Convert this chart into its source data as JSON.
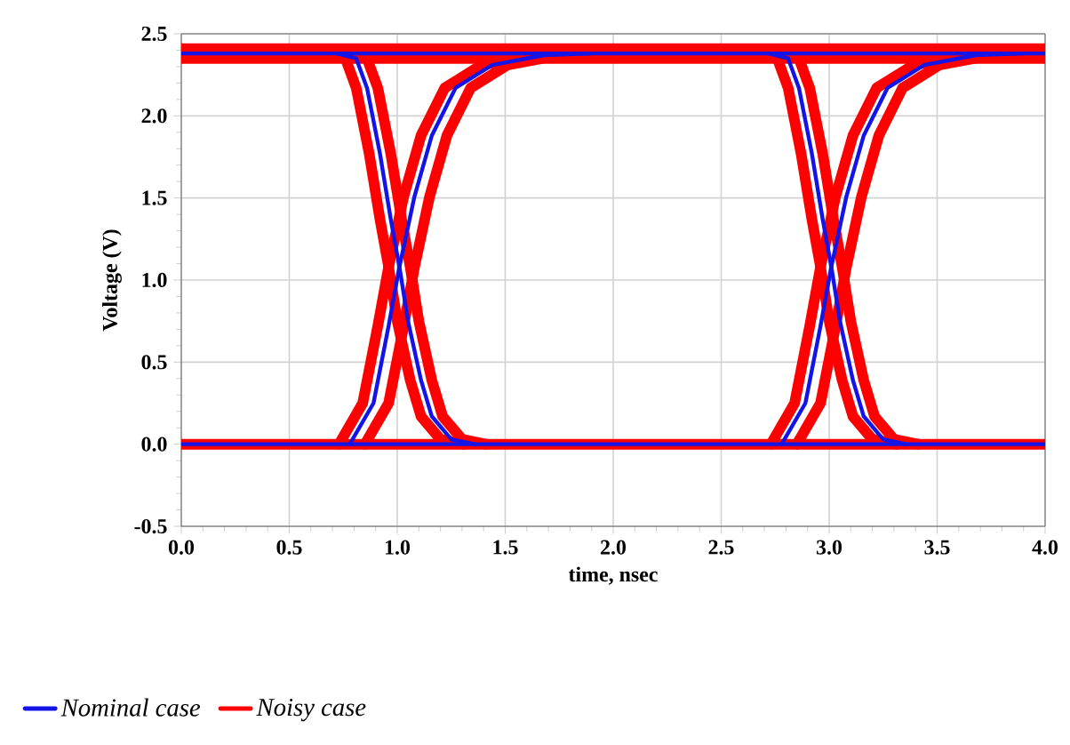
{
  "chart_data": {
    "type": "line",
    "xlabel": "time, nsec",
    "ylabel": "Voltage (V)",
    "xlim": [
      0,
      4
    ],
    "ylim": [
      -0.5,
      2.5
    ],
    "xticks": [
      {
        "value": 0,
        "label": "0.0"
      },
      {
        "value": 0.5,
        "label": "0.5"
      },
      {
        "value": 1,
        "label": "1.0"
      },
      {
        "value": 1.5,
        "label": "1.5"
      },
      {
        "value": 2,
        "label": "2.0"
      },
      {
        "value": 2.5,
        "label": "2.5"
      },
      {
        "value": 3,
        "label": "3.0"
      },
      {
        "value": 3.5,
        "label": "3.5"
      },
      {
        "value": 4,
        "label": "4.0"
      }
    ],
    "yticks": [
      {
        "value": -0.5,
        "label": "-0.5"
      },
      {
        "value": 0,
        "label": "0.0"
      },
      {
        "value": 0.5,
        "label": "0.5"
      },
      {
        "value": 1,
        "label": "1.0"
      },
      {
        "value": 1.5,
        "label": "1.5"
      },
      {
        "value": 2,
        "label": "2.0"
      },
      {
        "value": 2.5,
        "label": "2.5"
      }
    ],
    "grid": true,
    "legend": "bottom",
    "marker": "none",
    "line_style": "solid",
    "series": [
      {
        "name": "Nominal case",
        "color": "#1414e6",
        "x": [
          0,
          4
        ],
        "values": [
          2.38,
          2.38
        ]
      },
      {
        "color": "#1414e6",
        "x": [
          0,
          4
        ],
        "values": [
          0,
          0
        ]
      },
      {
        "color": "#1414e6",
        "x": [
          0.72,
          0.81,
          0.86,
          0.92,
          0.97,
          1.01,
          1.05,
          1.11,
          1.16,
          1.25,
          1.36
        ],
        "values": [
          2.38,
          2.35,
          2.17,
          1.77,
          1.37,
          1.08,
          0.75,
          0.39,
          0.17,
          0.03,
          0
        ]
      },
      {
        "color": "#1414e6",
        "x": [
          0.78,
          0.89,
          0.96,
          1.01,
          1.08,
          1.16,
          1.27,
          1.44,
          1.68,
          1.9
        ],
        "values": [
          0,
          0.25,
          0.72,
          1.08,
          1.51,
          1.88,
          2.17,
          2.31,
          2.37,
          2.38
        ]
      },
      {
        "color": "#1414e6",
        "x": [
          2.72,
          2.81,
          2.86,
          2.92,
          2.97,
          3.01,
          3.05,
          3.11,
          3.16,
          3.25,
          3.36
        ],
        "values": [
          2.38,
          2.35,
          2.17,
          1.77,
          1.37,
          1.08,
          0.75,
          0.39,
          0.17,
          0.03,
          0
        ]
      },
      {
        "color": "#1414e6",
        "x": [
          2.78,
          2.89,
          2.96,
          3.01,
          3.08,
          3.16,
          3.27,
          3.44,
          3.68,
          3.9
        ],
        "values": [
          0,
          0.25,
          0.72,
          1.08,
          1.51,
          1.88,
          2.17,
          2.31,
          2.37,
          2.38
        ]
      },
      {
        "name": "Noisy case",
        "color": "#ff0000",
        "x": [
          0,
          4
        ],
        "values": [
          2.35,
          2.35
        ]
      },
      {
        "color": "#ff0000",
        "x": [
          0,
          4
        ],
        "values": [
          2.41,
          2.41
        ]
      },
      {
        "color": "#ff0000",
        "x": [
          0,
          4
        ],
        "values": [
          0,
          0
        ]
      },
      {
        "color": "#ff0000",
        "x": [
          0.67,
          0.76,
          0.81,
          0.87,
          0.92,
          0.96,
          1.0,
          1.06,
          1.11,
          1.2,
          1.31
        ],
        "values": [
          2.38,
          2.35,
          2.17,
          1.77,
          1.37,
          1.08,
          0.75,
          0.39,
          0.17,
          0.03,
          0
        ]
      },
      {
        "color": "#ff0000",
        "x": [
          0.77,
          0.86,
          0.91,
          0.97,
          1.02,
          1.06,
          1.1,
          1.16,
          1.21,
          1.3,
          1.41
        ],
        "values": [
          2.38,
          2.35,
          2.17,
          1.77,
          1.37,
          1.08,
          0.75,
          0.39,
          0.17,
          0.03,
          0
        ]
      },
      {
        "color": "#ff0000",
        "x": [
          0.73,
          0.84,
          0.91,
          0.96,
          1.03,
          1.11,
          1.22,
          1.39,
          1.63,
          1.85
        ],
        "values": [
          0,
          0.25,
          0.72,
          1.08,
          1.51,
          1.88,
          2.17,
          2.31,
          2.37,
          2.38
        ]
      },
      {
        "color": "#ff0000",
        "x": [
          0.85,
          0.96,
          1.03,
          1.08,
          1.15,
          1.23,
          1.34,
          1.51,
          1.75,
          1.97
        ],
        "values": [
          0,
          0.25,
          0.72,
          1.08,
          1.51,
          1.88,
          2.17,
          2.31,
          2.37,
          2.38
        ]
      },
      {
        "color": "#ff0000",
        "x": [
          2.67,
          2.76,
          2.81,
          2.87,
          2.92,
          2.96,
          3.0,
          3.06,
          3.11,
          3.2,
          3.31
        ],
        "values": [
          2.38,
          2.35,
          2.17,
          1.77,
          1.37,
          1.08,
          0.75,
          0.39,
          0.17,
          0.03,
          0
        ]
      },
      {
        "color": "#ff0000",
        "x": [
          2.77,
          2.86,
          2.91,
          2.97,
          3.02,
          3.06,
          3.1,
          3.16,
          3.21,
          3.3,
          3.41
        ],
        "values": [
          2.38,
          2.35,
          2.17,
          1.77,
          1.37,
          1.08,
          0.75,
          0.39,
          0.17,
          0.03,
          0
        ]
      },
      {
        "color": "#ff0000",
        "x": [
          2.73,
          2.84,
          2.91,
          2.96,
          3.03,
          3.11,
          3.22,
          3.39,
          3.63,
          3.85
        ],
        "values": [
          0,
          0.25,
          0.72,
          1.08,
          1.51,
          1.88,
          2.17,
          2.31,
          2.37,
          2.38
        ]
      },
      {
        "color": "#ff0000",
        "x": [
          2.85,
          2.96,
          3.03,
          3.08,
          3.15,
          3.23,
          3.34,
          3.51,
          3.75,
          3.97
        ],
        "values": [
          0,
          0.25,
          0.72,
          1.08,
          1.51,
          1.88,
          2.17,
          2.31,
          2.37,
          2.38
        ]
      }
    ]
  }
}
